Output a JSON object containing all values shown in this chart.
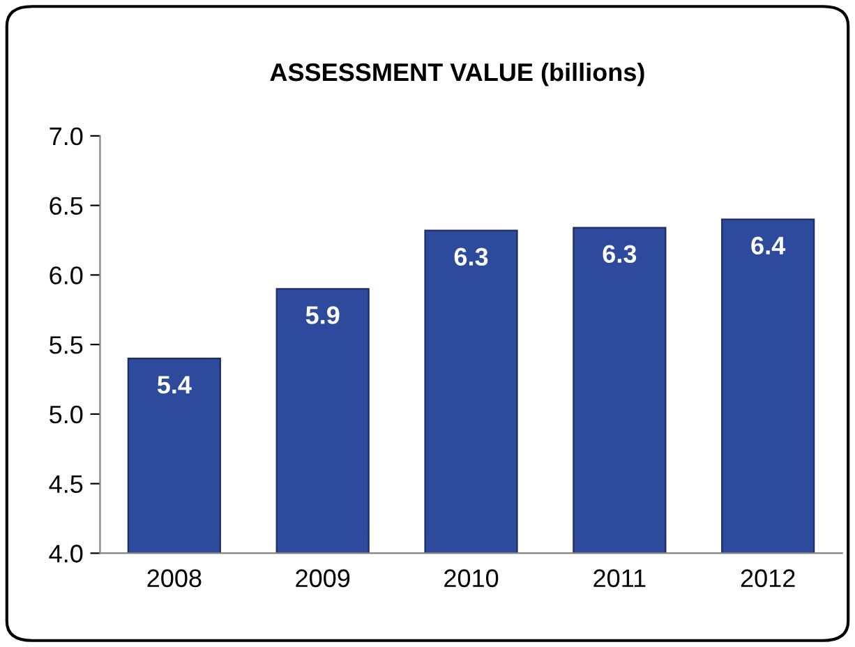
{
  "chart_data": {
    "type": "bar",
    "title": "ASSESSMENT VALUE (billions)",
    "categories": [
      "2008",
      "2009",
      "2010",
      "2011",
      "2012"
    ],
    "values": [
      5.4,
      5.9,
      6.32,
      6.34,
      6.4
    ],
    "value_labels": [
      "5.4",
      "5.9",
      "6.3",
      "6.3",
      "6.4"
    ],
    "color": "#2d4a9c",
    "ylim": [
      4.0,
      7.0
    ],
    "yticks": [
      {
        "value": 4,
        "label": "4.0"
      },
      4.5,
      {
        "value": 5,
        "label": "5.0"
      },
      5.5,
      {
        "value": 6,
        "label": "6.0"
      },
      6.5,
      {
        "value": 7,
        "label": "7.0"
      }
    ],
    "grid": false
  }
}
